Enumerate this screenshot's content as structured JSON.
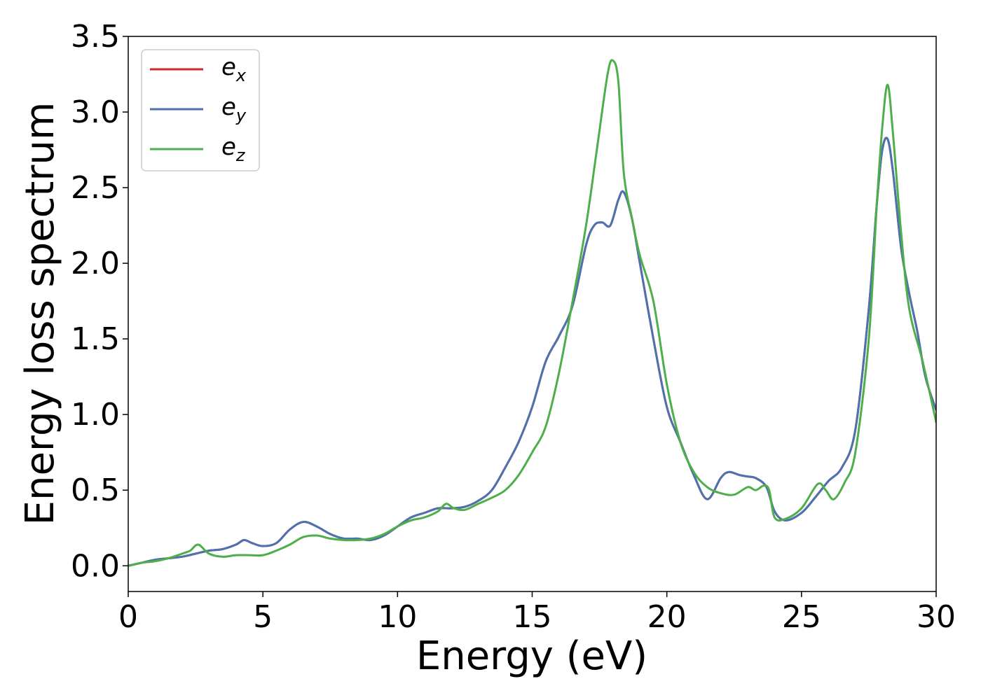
{
  "chart_data": {
    "type": "line",
    "title": "",
    "xlabel": "Energy (eV)",
    "ylabel": "Energy loss spectrum",
    "xlim": [
      0,
      30
    ],
    "ylim": [
      -0.17,
      3.5
    ],
    "xticks": [
      0,
      5,
      10,
      15,
      20,
      25,
      30
    ],
    "xtick_labels": [
      "0",
      "5",
      "10",
      "15",
      "20",
      "25",
      "30"
    ],
    "yticks": [
      0.0,
      0.5,
      1.0,
      1.5,
      2.0,
      2.5,
      3.0,
      3.5
    ],
    "ytick_labels": [
      "0.0",
      "0.5",
      "1.0",
      "1.5",
      "2.0",
      "2.5",
      "3.0",
      "3.5"
    ],
    "grid": false,
    "legend_position": "top-left",
    "series": [
      {
        "name": "e_x",
        "label_main": "e",
        "label_sub": "x",
        "color": "#d62728",
        "x": [
          0,
          0.5,
          1.0,
          1.5,
          2.0,
          2.5,
          3.0,
          3.5,
          4.0,
          4.3,
          4.6,
          5.0,
          5.5,
          6.0,
          6.5,
          7.0,
          7.5,
          8.0,
          8.5,
          9.0,
          9.5,
          10.0,
          10.5,
          11.0,
          11.5,
          12.0,
          12.5,
          13.0,
          13.5,
          14.0,
          14.5,
          15.0,
          15.5,
          16.0,
          16.5,
          17.0,
          17.3,
          17.6,
          17.9,
          18.2,
          18.4,
          18.7,
          19.0,
          19.5,
          20.0,
          20.5,
          21.0,
          21.5,
          22.0,
          22.3,
          22.7,
          23.0,
          23.3,
          23.7,
          24.0,
          24.4,
          25.0,
          25.5,
          26.0,
          26.5,
          27.0,
          27.5,
          27.8,
          28.0,
          28.2,
          28.4,
          28.7,
          29.0,
          29.3,
          29.6,
          30.0
        ],
        "y": [
          0.0,
          0.02,
          0.04,
          0.05,
          0.06,
          0.08,
          0.1,
          0.11,
          0.14,
          0.17,
          0.15,
          0.13,
          0.15,
          0.24,
          0.29,
          0.26,
          0.21,
          0.18,
          0.18,
          0.17,
          0.2,
          0.26,
          0.32,
          0.35,
          0.38,
          0.38,
          0.39,
          0.43,
          0.5,
          0.65,
          0.82,
          1.05,
          1.35,
          1.52,
          1.72,
          2.12,
          2.25,
          2.27,
          2.25,
          2.42,
          2.47,
          2.3,
          2.0,
          1.5,
          1.05,
          0.82,
          0.6,
          0.44,
          0.58,
          0.62,
          0.6,
          0.59,
          0.58,
          0.52,
          0.36,
          0.3,
          0.35,
          0.45,
          0.56,
          0.65,
          0.9,
          1.7,
          2.4,
          2.75,
          2.82,
          2.6,
          2.1,
          1.8,
          1.55,
          1.25,
          1.03
        ]
      },
      {
        "name": "e_y",
        "label_main": "e",
        "label_sub": "y",
        "color": "#4c72b0",
        "x": [
          0,
          0.5,
          1.0,
          1.5,
          2.0,
          2.5,
          3.0,
          3.5,
          4.0,
          4.3,
          4.6,
          5.0,
          5.5,
          6.0,
          6.5,
          7.0,
          7.5,
          8.0,
          8.5,
          9.0,
          9.5,
          10.0,
          10.5,
          11.0,
          11.5,
          12.0,
          12.5,
          13.0,
          13.5,
          14.0,
          14.5,
          15.0,
          15.5,
          16.0,
          16.5,
          17.0,
          17.3,
          17.6,
          17.9,
          18.2,
          18.4,
          18.7,
          19.0,
          19.5,
          20.0,
          20.5,
          21.0,
          21.5,
          22.0,
          22.3,
          22.7,
          23.0,
          23.3,
          23.7,
          24.0,
          24.4,
          25.0,
          25.5,
          26.0,
          26.5,
          27.0,
          27.5,
          27.8,
          28.0,
          28.2,
          28.4,
          28.7,
          29.0,
          29.3,
          29.6,
          30.0
        ],
        "y": [
          0.0,
          0.02,
          0.04,
          0.05,
          0.06,
          0.08,
          0.1,
          0.11,
          0.14,
          0.17,
          0.15,
          0.13,
          0.15,
          0.24,
          0.29,
          0.26,
          0.21,
          0.18,
          0.18,
          0.17,
          0.2,
          0.26,
          0.32,
          0.35,
          0.38,
          0.38,
          0.39,
          0.43,
          0.5,
          0.65,
          0.82,
          1.05,
          1.35,
          1.52,
          1.72,
          2.12,
          2.25,
          2.27,
          2.25,
          2.42,
          2.47,
          2.3,
          2.0,
          1.5,
          1.05,
          0.82,
          0.6,
          0.44,
          0.58,
          0.62,
          0.6,
          0.59,
          0.58,
          0.52,
          0.36,
          0.3,
          0.35,
          0.45,
          0.56,
          0.65,
          0.9,
          1.7,
          2.4,
          2.75,
          2.82,
          2.6,
          2.1,
          1.8,
          1.55,
          1.25,
          1.03
        ]
      },
      {
        "name": "e_z",
        "label_main": "e",
        "label_sub": "z",
        "color": "#4daf4a",
        "x": [
          0,
          0.5,
          1.0,
          1.5,
          2.0,
          2.3,
          2.6,
          3.0,
          3.5,
          4.0,
          4.5,
          5.0,
          5.5,
          6.0,
          6.5,
          7.0,
          7.5,
          8.0,
          8.5,
          9.0,
          9.5,
          10.0,
          10.5,
          11.0,
          11.5,
          11.8,
          12.1,
          12.5,
          13.0,
          13.5,
          14.0,
          14.5,
          15.0,
          15.5,
          16.0,
          16.5,
          17.0,
          17.4,
          17.8,
          18.0,
          18.2,
          18.4,
          18.7,
          19.0,
          19.5,
          20.0,
          20.5,
          21.0,
          21.5,
          22.0,
          22.5,
          23.0,
          23.3,
          23.6,
          23.8,
          24.0,
          24.4,
          25.0,
          25.6,
          25.9,
          26.2,
          26.6,
          27.0,
          27.5,
          27.8,
          28.0,
          28.2,
          28.4,
          28.7,
          29.0,
          29.5,
          30.0
        ],
        "y": [
          0.0,
          0.02,
          0.03,
          0.05,
          0.08,
          0.1,
          0.14,
          0.08,
          0.06,
          0.07,
          0.07,
          0.07,
          0.1,
          0.14,
          0.19,
          0.2,
          0.18,
          0.17,
          0.17,
          0.18,
          0.21,
          0.26,
          0.3,
          0.32,
          0.36,
          0.41,
          0.38,
          0.37,
          0.41,
          0.45,
          0.5,
          0.6,
          0.75,
          0.92,
          1.28,
          1.75,
          2.25,
          2.75,
          3.25,
          3.34,
          3.2,
          2.6,
          2.3,
          2.05,
          1.75,
          1.2,
          0.82,
          0.62,
          0.52,
          0.48,
          0.47,
          0.52,
          0.5,
          0.53,
          0.5,
          0.32,
          0.31,
          0.38,
          0.54,
          0.5,
          0.44,
          0.55,
          0.75,
          1.5,
          2.4,
          2.9,
          3.18,
          2.85,
          2.2,
          1.7,
          1.35,
          0.95
        ]
      }
    ]
  }
}
